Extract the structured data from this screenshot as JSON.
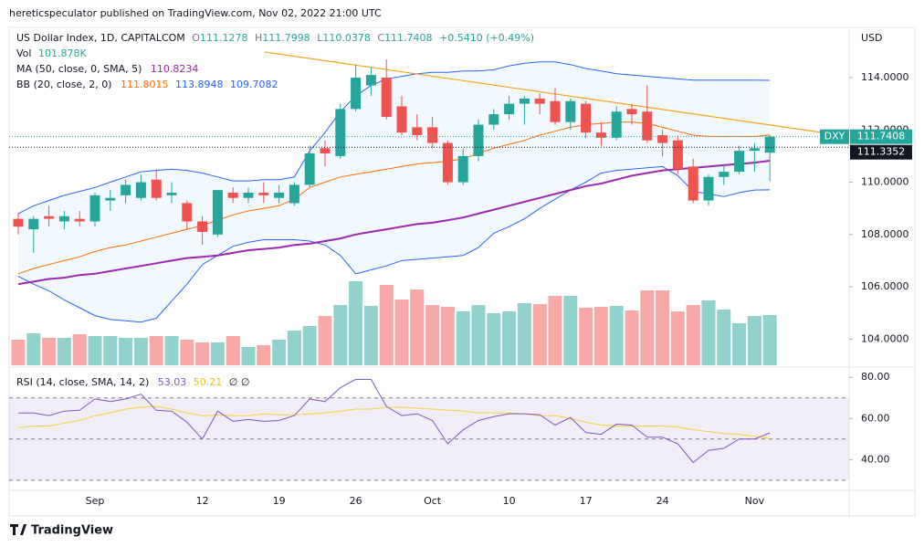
{
  "header": "hereticspeculator published on TradingView.com, Nov 02, 2022 21:00 UTC",
  "footer": "TradingView",
  "chart_data": {
    "type": "candlestick",
    "title": "US Dollar Index, 1D, CAPITALCOM",
    "ohlc_labels": [
      "O",
      "H",
      "L",
      "C"
    ],
    "change": "+0.5410 (+0.49%)",
    "symbol": "DXY",
    "y_unit": "USD",
    "up_color": "#26a69a",
    "down_color": "#ef5350",
    "categories": [
      null,
      null,
      null,
      null,
      null,
      "Sep",
      null,
      null,
      null,
      null,
      null,
      null,
      "12",
      null,
      null,
      null,
      null,
      "19",
      null,
      null,
      null,
      null,
      "26",
      null,
      null,
      null,
      null,
      "Oct",
      null,
      null,
      null,
      null,
      "10",
      null,
      null,
      null,
      null,
      "17",
      null,
      null,
      null,
      null,
      "24",
      null,
      null,
      null,
      null,
      null,
      "Nov",
      null
    ],
    "open": [
      108.6,
      108.2,
      108.7,
      108.5,
      108.6,
      108.5,
      109.3,
      109.5,
      109.4,
      110.1,
      109.5,
      109.2,
      108.5,
      108.0,
      109.6,
      109.4,
      109.6,
      109.4,
      109.2,
      109.9,
      111.3,
      111.0,
      112.8,
      113.7,
      114.0,
      112.9,
      112.1,
      112.1,
      111.5,
      110.0,
      111.0,
      112.2,
      112.6,
      113.0,
      113.2,
      113.1,
      112.3,
      113.0,
      111.9,
      111.7,
      112.8,
      112.7,
      111.8,
      111.6,
      110.6,
      109.3,
      110.2,
      110.4,
      111.2,
      111.1278
    ],
    "high": [
      108.8,
      108.7,
      109.1,
      108.9,
      108.9,
      109.6,
      109.7,
      110.1,
      110.3,
      110.5,
      110.0,
      109.3,
      108.7,
      109.7,
      109.8,
      109.8,
      110.0,
      109.9,
      110.0,
      111.4,
      111.6,
      113.0,
      114.5,
      114.4,
      114.7,
      113.3,
      112.6,
      112.5,
      111.6,
      111.3,
      112.4,
      112.8,
      113.3,
      113.3,
      113.4,
      113.6,
      113.2,
      113.1,
      112.3,
      112.9,
      113.0,
      113.7,
      112.0,
      111.8,
      110.9,
      110.3,
      110.7,
      111.4,
      111.5,
      111.7998
    ],
    "low": [
      108.0,
      107.3,
      108.3,
      108.2,
      108.3,
      108.3,
      108.9,
      109.2,
      109.3,
      109.3,
      109.2,
      108.2,
      107.6,
      107.9,
      109.2,
      109.2,
      109.2,
      109.2,
      109.1,
      109.8,
      110.6,
      110.9,
      112.7,
      113.3,
      112.4,
      111.8,
      111.6,
      111.3,
      109.9,
      109.9,
      110.8,
      112.0,
      112.4,
      112.2,
      112.6,
      112.2,
      112.0,
      111.7,
      111.4,
      111.6,
      112.2,
      111.5,
      111.0,
      110.3,
      109.2,
      109.1,
      109.9,
      110.3,
      110.4,
      110.0378
    ],
    "close": [
      108.3,
      108.6,
      108.6,
      108.7,
      108.5,
      109.5,
      109.4,
      109.9,
      110.0,
      109.4,
      109.6,
      108.5,
      108.1,
      109.7,
      109.4,
      109.6,
      109.5,
      109.6,
      109.9,
      111.1,
      111.1,
      112.8,
      114.0,
      114.1,
      112.5,
      111.9,
      111.8,
      111.5,
      110.0,
      111.0,
      112.2,
      112.6,
      113.0,
      113.2,
      113.0,
      112.3,
      113.1,
      111.9,
      111.7,
      112.7,
      112.6,
      111.6,
      111.5,
      110.5,
      109.3,
      110.2,
      110.4,
      111.2,
      111.3,
      111.7408
    ],
    "ylim": [
      103,
      115.92
    ],
    "yticks": [
      {
        "value": 104,
        "label": "104.0000"
      },
      {
        "value": 106,
        "label": "106.0000"
      },
      {
        "value": 108,
        "label": "108.0000"
      },
      {
        "value": 110,
        "label": "110.0000"
      },
      {
        "value": 112,
        "label": "112.0000"
      },
      {
        "value": 114,
        "label": "114.0000"
      }
    ],
    "price_line": 111.3352,
    "volume": {
      "name": "Vol",
      "vlim": [
        0,
        685400
      ],
      "value_label": "101.878K",
      "values": [
        51900,
        64800,
        55600,
        55600,
        63000,
        59300,
        59300,
        55600,
        55600,
        59300,
        59300,
        51900,
        46300,
        46300,
        59300,
        37000,
        40700,
        51900,
        70400,
        79600,
        100000,
        122200,
        170400,
        120400,
        163000,
        133300,
        153700,
        122200,
        118500,
        109300,
        122200,
        105600,
        109300,
        125900,
        124100,
        140800,
        140800,
        116700,
        118500,
        120400,
        111100,
        151900,
        151900,
        109300,
        122200,
        131500,
        113000,
        85200,
        100000,
        101878
      ]
    },
    "ma": {
      "name": "MA (50, close, 0, SMA, 5)",
      "color": "#9c27b0",
      "values": [
        106.1,
        106.2,
        106.3,
        106.35,
        106.45,
        106.5,
        106.6,
        106.7,
        106.8,
        106.9,
        107.0,
        107.1,
        107.15,
        107.2,
        107.3,
        107.4,
        107.45,
        107.5,
        107.6,
        107.65,
        107.75,
        107.85,
        108.0,
        108.1,
        108.2,
        108.3,
        108.4,
        108.45,
        108.55,
        108.65,
        108.8,
        108.95,
        109.1,
        109.25,
        109.4,
        109.55,
        109.7,
        109.85,
        109.95,
        110.1,
        110.25,
        110.35,
        110.45,
        110.5,
        110.55,
        110.6,
        110.65,
        110.7,
        110.75,
        110.8234
      ]
    },
    "bb": {
      "name": "BB (20, close, 2, 0)",
      "fill": "rgba(33,150,243,0.06)",
      "basis": {
        "color": "#ff6d00",
        "values": [
          106.5,
          106.7,
          106.85,
          107.0,
          107.15,
          107.35,
          107.5,
          107.6,
          107.75,
          107.9,
          108.05,
          108.2,
          108.35,
          108.55,
          108.75,
          108.9,
          109.0,
          109.1,
          109.35,
          109.8,
          110.0,
          110.2,
          110.3,
          110.4,
          110.5,
          110.6,
          110.7,
          110.75,
          110.8,
          110.9,
          111.1,
          111.3,
          111.45,
          111.6,
          111.8,
          111.95,
          112.1,
          112.2,
          112.25,
          112.3,
          112.3,
          112.25,
          112.1,
          111.95,
          111.8,
          111.75,
          111.75,
          111.75,
          111.75,
          111.8015
        ]
      },
      "upper": {
        "color": "#2962ff",
        "values": [
          108.8,
          109.1,
          109.3,
          109.5,
          109.65,
          109.8,
          110.0,
          110.2,
          110.4,
          110.45,
          110.5,
          110.45,
          110.35,
          110.2,
          110.05,
          110.05,
          110.1,
          110.1,
          110.2,
          111.2,
          111.9,
          112.7,
          113.3,
          113.7,
          113.95,
          114.05,
          114.15,
          114.2,
          114.2,
          114.25,
          114.25,
          114.3,
          114.45,
          114.55,
          114.6,
          114.6,
          114.5,
          114.35,
          114.25,
          114.15,
          114.1,
          114.05,
          114.0,
          113.95,
          113.9,
          113.9,
          113.9,
          113.9,
          113.9,
          113.8948
        ]
      },
      "lower": {
        "color": "#2962ff",
        "values": [
          106.4,
          106.1,
          105.85,
          105.5,
          105.2,
          104.9,
          104.75,
          104.7,
          104.65,
          104.8,
          105.45,
          106.1,
          106.85,
          107.2,
          107.55,
          107.7,
          107.8,
          107.8,
          107.8,
          107.75,
          107.6,
          107.2,
          106.5,
          106.65,
          106.8,
          107.0,
          107.05,
          107.1,
          107.15,
          107.2,
          107.5,
          108.05,
          108.3,
          108.6,
          109.0,
          109.35,
          109.7,
          110.0,
          110.35,
          110.45,
          110.5,
          110.55,
          110.6,
          110.25,
          109.65,
          109.55,
          109.45,
          109.6,
          109.7,
          109.7082
        ]
      }
    },
    "trendline": {
      "color": "#f7a21b",
      "x": [
        16.07,
        52.4
      ],
      "values": [
        114.98,
        111.9
      ]
    },
    "rsi": {
      "name": "RSI (14, close, SMA, 14, 2)",
      "color": "#7e57c2",
      "extra": "∅ ∅",
      "ylim": [
        25.5,
        84.1
      ],
      "yticks": [
        {
          "value": 40,
          "label": "40.00"
        },
        {
          "value": 60,
          "label": "60.00"
        },
        {
          "value": 80,
          "label": "80.00"
        }
      ],
      "band_lines": [
        70,
        50,
        30
      ],
      "values": [
        62.7,
        62.7,
        61.4,
        63.6,
        64,
        69.5,
        68.2,
        69.5,
        71.8,
        64,
        63.6,
        58.2,
        50,
        63.6,
        58.6,
        59.5,
        58.6,
        59,
        61.4,
        69.5,
        68.2,
        75,
        79,
        79,
        65.9,
        61.4,
        62.3,
        59,
        47.7,
        54.5,
        59,
        60.9,
        62.3,
        62.3,
        61.8,
        56.8,
        60.5,
        53.2,
        52.3,
        57.3,
        56.8,
        50.9,
        50.9,
        47.7,
        38.6,
        44.5,
        45.5,
        50,
        50,
        53.03
      ],
      "ma": {
        "color": "#f5d33a",
        "values": [
          55.45,
          56.36,
          56.36,
          57.73,
          59.09,
          61.36,
          62.73,
          64.55,
          65.45,
          65.91,
          64.55,
          62.73,
          61.36,
          61.82,
          61.36,
          61.36,
          62.27,
          61.82,
          61.82,
          62.27,
          62.73,
          63.64,
          64.55,
          64.55,
          65.45,
          65.45,
          65,
          64.55,
          64.09,
          63.64,
          62.73,
          62.73,
          62.73,
          62.27,
          61.36,
          61.36,
          60,
          58.18,
          56.82,
          56.36,
          56.36,
          56.36,
          56.36,
          55.91,
          54.55,
          53.64,
          52.73,
          52.27,
          51.36,
          50.21
        ]
      }
    }
  }
}
